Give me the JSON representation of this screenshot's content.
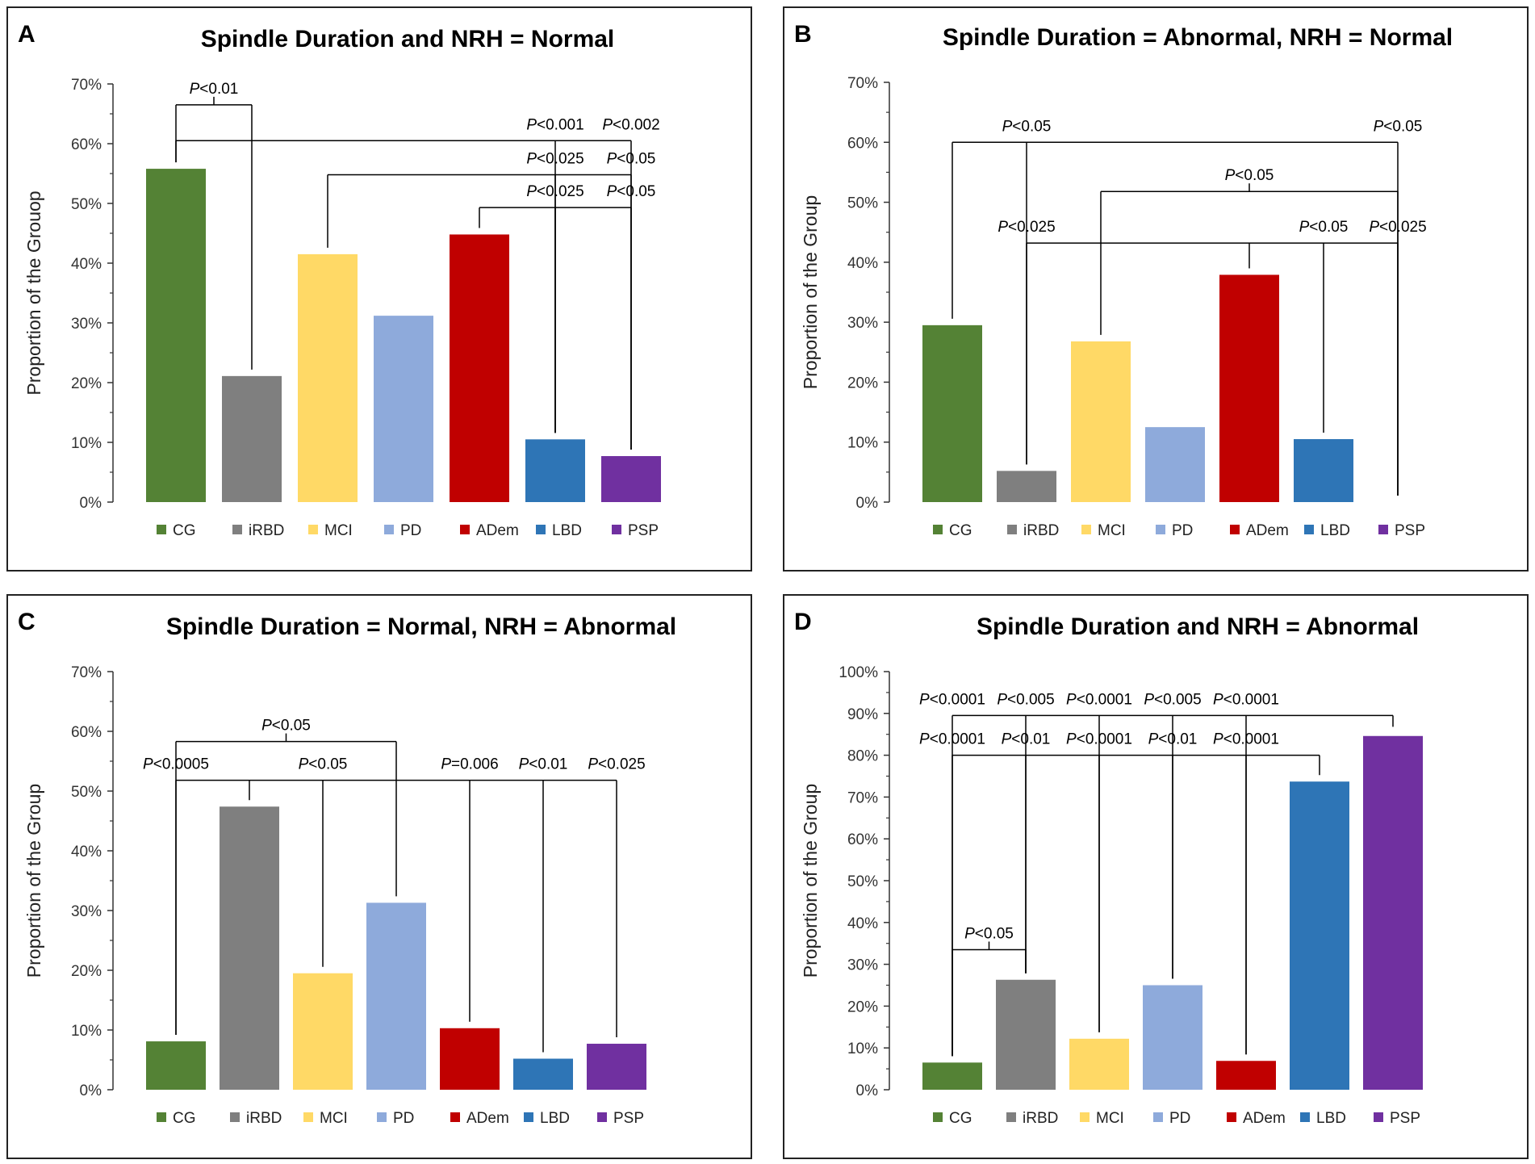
{
  "groups": [
    "CG",
    "iRBD",
    "MCI",
    "PD",
    "ADem",
    "LBD",
    "PSP"
  ],
  "colors": {
    "CG": "#548235",
    "iRBD": "#7f7f7f",
    "MCI": "#ffd966",
    "PD": "#8eaadb",
    "ADem": "#c00000",
    "LBD": "#2e75b6",
    "PSP": "#7030a0"
  },
  "chart_data": [
    {
      "panel": "A",
      "type": "bar",
      "title": "Spindle Duration and NRH = Normal",
      "ylabel": "Proportion of the Grouop",
      "categories": [
        "CG",
        "iRBD",
        "MCI",
        "PD",
        "ADem",
        "LBD",
        "PSP"
      ],
      "values": [
        55.8,
        21.1,
        41.5,
        31.2,
        44.8,
        10.5,
        7.7
      ],
      "ylim": [
        0,
        70
      ],
      "yticks": [
        "0%",
        "10%",
        "20%",
        "30%",
        "40%",
        "50%",
        "60%",
        "70%"
      ],
      "annotations": [
        {
          "from": "CG",
          "to": "iRBD",
          "y": 66.5,
          "label_pre": "P",
          "label_post": "<0.01",
          "at": "center",
          "drops": [
            "CG",
            "iRBD"
          ]
        },
        {
          "from": "CG",
          "to": "PSP",
          "y": 60.5,
          "label_pre": "P",
          "label_post": "<0.001",
          "at": "LBD",
          "drops": [
            "CG",
            "LBD",
            "PSP"
          ],
          "label2_pre": "P",
          "label2_post": "<0.002",
          "at2": "PSP"
        },
        {
          "from": "MCI",
          "to": "PSP",
          "y": 54.8,
          "label_pre": "P",
          "label_post": "<0.025",
          "at": "LBD",
          "drops": [
            "MCI",
            "LBD",
            "PSP"
          ],
          "label2_pre": "P",
          "label2_post": "<0.05",
          "at2": "PSP"
        },
        {
          "from": "ADem",
          "to": "PSP",
          "y": 49.3,
          "label_pre": "P",
          "label_post": "<0.025",
          "at": "LBD",
          "drops": [
            "ADem",
            "LBD",
            "PSP"
          ],
          "label2_pre": "P",
          "label2_post": "<0.05",
          "at2": "PSP"
        }
      ]
    },
    {
      "panel": "B",
      "type": "bar",
      "title": "Spindle Duration = Abnormal, NRH = Normal",
      "ylabel": "Proportion of the Group",
      "categories": [
        "CG",
        "iRBD",
        "MCI",
        "PD",
        "ADem",
        "LBD",
        "PSP"
      ],
      "values": [
        29.5,
        5.2,
        26.8,
        12.5,
        37.9,
        10.5,
        0
      ],
      "ylim": [
        0,
        70
      ],
      "yticks": [
        "0%",
        "10%",
        "20%",
        "30%",
        "40%",
        "50%",
        "60%",
        "70%"
      ],
      "annotations": [
        {
          "from": "CG",
          "to": "PSP",
          "y": 60.0,
          "label_pre": "P",
          "label_post": "<0.05",
          "at": "iRBD",
          "drops": [
            "CG",
            "iRBD",
            "PSP"
          ],
          "label2_pre": "P",
          "label2_post": "<0.05",
          "at2": "PSP"
        },
        {
          "from": "MCI",
          "to": "PSP",
          "y": 51.8,
          "label_pre": "P",
          "label_post": "<0.05",
          "at": "center",
          "drops": [
            "MCI",
            "PSP"
          ]
        },
        {
          "from": "iRBD",
          "to": "PSP",
          "y": 43.2,
          "label_pre": "P",
          "label_post": "<0.025",
          "at": "iRBD",
          "drops": [
            "iRBD",
            "ADem",
            "LBD",
            "PSP"
          ],
          "label2_pre": "P",
          "label2_post": "<0.05",
          "at2": "LBD",
          "label3_pre": "P",
          "label3_post": "<0.025",
          "at3": "PSP"
        }
      ]
    },
    {
      "panel": "C",
      "type": "bar",
      "title": "Spindle Duration = Normal, NRH = Abnormal",
      "ylabel": "Proportion of the Group",
      "categories": [
        "CG",
        "iRBD",
        "MCI",
        "PD",
        "ADem",
        "LBD",
        "PSP"
      ],
      "values": [
        8.1,
        47.4,
        19.5,
        31.3,
        10.3,
        5.2,
        7.7
      ],
      "ylim": [
        0,
        70
      ],
      "yticks": [
        "0%",
        "10%",
        "20%",
        "30%",
        "40%",
        "50%",
        "60%",
        "70%"
      ],
      "annotations": [
        {
          "from": "CG",
          "to": "PD",
          "y": 58.3,
          "label_pre": "P",
          "label_post": "<0.05",
          "at": "center",
          "drops": [
            "CG",
            "PD"
          ]
        },
        {
          "from": "CG",
          "to": "PSP",
          "y": 51.8,
          "label_pre": "P",
          "label_post": "<0.0005",
          "at": "CG",
          "drops": [
            "CG",
            "iRBD",
            "MCI",
            "ADem",
            "LBD",
            "PSP"
          ],
          "label2_pre": "P",
          "label2_post": "<0.05",
          "at2": "MCI",
          "label3_pre": "P",
          "label3_post": "=0.006",
          "at3": "ADem",
          "label4_pre": "P",
          "label4_post": "<0.01",
          "at4": "LBD",
          "label5_pre": "P",
          "label5_post": "<0.025",
          "at5": "PSP"
        }
      ]
    },
    {
      "panel": "D",
      "type": "bar",
      "title": "Spindle Duration and NRH = Abnormal",
      "ylabel": "Proportion of the Group",
      "categories": [
        "CG",
        "iRBD",
        "MCI",
        "PD",
        "ADem",
        "LBD",
        "PSP"
      ],
      "values": [
        6.5,
        26.3,
        12.2,
        25.0,
        6.9,
        73.7,
        84.6
      ],
      "ylim": [
        0,
        100
      ],
      "yticks": [
        "0%",
        "10%",
        "20%",
        "30%",
        "40%",
        "50%",
        "60%",
        "70%",
        "80%",
        "90%",
        "100%"
      ],
      "annotations": [
        {
          "from": "CG",
          "to": "PSP",
          "y": 89.5,
          "label_pre": "P",
          "label_post": "<0.0001",
          "at": "CG",
          "drops": [
            "CG",
            "iRBD",
            "MCI",
            "PD",
            "ADem",
            "PSP"
          ],
          "label2_pre": "P",
          "label2_post": "<0.005",
          "at2": "iRBD",
          "label3_pre": "P",
          "label3_post": "<0.0001",
          "at3": "MCI",
          "label4_pre": "P",
          "label4_post": "<0.005",
          "at4": "PD",
          "label5_pre": "P",
          "label5_post": "<0.0001",
          "at5": "ADem"
        },
        {
          "from": "CG",
          "to": "LBD",
          "y": 80.0,
          "label_pre": "P",
          "label_post": "<0.0001",
          "at": "CG",
          "drops": [
            "CG",
            "iRBD",
            "MCI",
            "PD",
            "ADem",
            "LBD"
          ],
          "label2_pre": "P",
          "label2_post": "<0.01",
          "at2": "iRBD",
          "label3_pre": "P",
          "label3_post": "<0.0001",
          "at3": "MCI",
          "label4_pre": "P",
          "label4_post": "<0.01",
          "at4": "PD",
          "label5_pre": "P",
          "label5_post": "<0.0001",
          "at5": "ADem"
        },
        {
          "from": "CG",
          "to": "iRBD",
          "y": 33.5,
          "label_pre": "P",
          "label_post": "<0.05",
          "at": "center",
          "drops": [
            "CG",
            "iRBD"
          ]
        }
      ]
    }
  ]
}
